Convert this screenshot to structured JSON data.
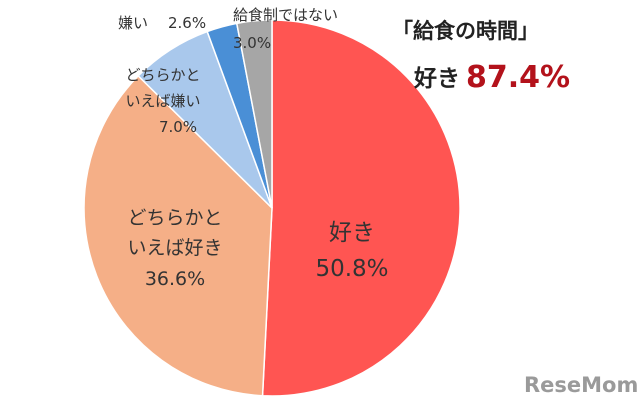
{
  "headline": {
    "title": "「給食の時間」",
    "sub_label": "好き",
    "sub_value": "87.4%"
  },
  "watermark": {
    "brand": "ReseMom"
  },
  "chart_data": {
    "type": "pie",
    "start_angle_deg": 0,
    "direction": "clockwise",
    "slices": [
      {
        "label_lines": [
          "好き"
        ],
        "value": 50.8,
        "value_text": "50.8%",
        "color": "#ff5552"
      },
      {
        "label_lines": [
          "どちらかと",
          "いえば好き"
        ],
        "value": 36.6,
        "value_text": "36.6%",
        "color": "#f5af87"
      },
      {
        "label_lines": [
          "どちらかと",
          "いえば嫌い"
        ],
        "value": 7.0,
        "value_text": "7.0%",
        "color": "#a9c8ec"
      },
      {
        "label_lines": [
          "嫌い"
        ],
        "value": 2.6,
        "value_text": "2.6%",
        "color": "#4a8fd6"
      },
      {
        "label_lines": [
          "給食制ではない"
        ],
        "value": 3.0,
        "value_text": "3.0%",
        "color": "#a6a6a6"
      }
    ],
    "title": "",
    "legend": "none"
  }
}
